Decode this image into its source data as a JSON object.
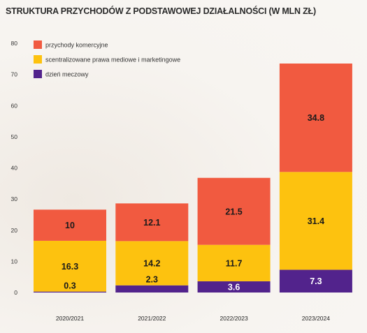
{
  "chart_data": {
    "type": "bar",
    "stacked": true,
    "title": "STRUKTURA PRZYCHODÓW Z PODSTAWOWEJ DZIAŁALNOŚCI (W MLN ZŁ)",
    "categories": [
      "2020/2021",
      "2021/2022",
      "2022/2023",
      "2023/2024"
    ],
    "series": [
      {
        "name": "dzień meczowy",
        "color": "#52238c",
        "label_color": "#ffffff",
        "values": [
          0.3,
          2.3,
          3.6,
          7.3
        ]
      },
      {
        "name": "scentralizowane prawa mediowe i marketingowe",
        "color": "#fdc20f",
        "label_color": "#1a1a1a",
        "values": [
          16.3,
          14.2,
          11.7,
          31.4
        ]
      },
      {
        "name": "przychody komercyjne",
        "color": "#f15a40",
        "label_color": "#1a1a1a",
        "values": [
          10,
          12.1,
          21.5,
          34.8
        ]
      }
    ],
    "legend": {
      "position": "top-left",
      "order": [
        "przychody komercyjne",
        "scentralizowane prawa mediowe i marketingowe",
        "dzień meczowy"
      ]
    },
    "ylim": [
      0,
      80
    ],
    "yticks": [
      0,
      10,
      20,
      30,
      40,
      50,
      60,
      70,
      80
    ],
    "grid": false,
    "xlabel": "",
    "ylabel": ""
  }
}
